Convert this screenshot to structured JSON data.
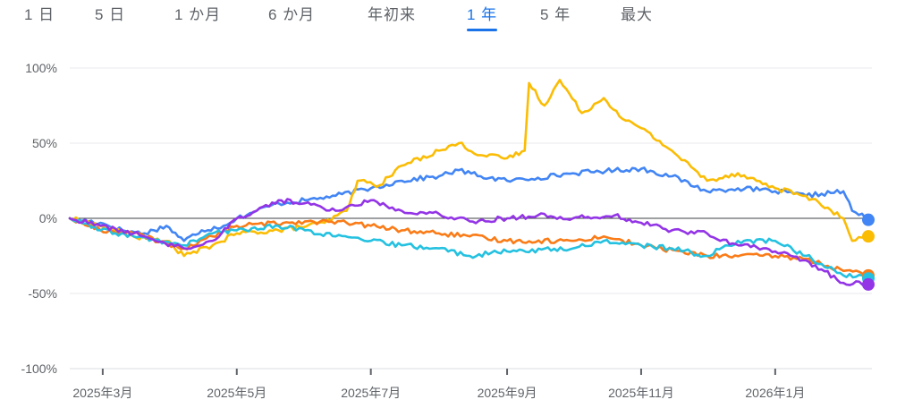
{
  "range_tabs": [
    {
      "label": "1 日",
      "active": false
    },
    {
      "label": "5 日",
      "active": false
    },
    {
      "label": "1 か月",
      "active": false
    },
    {
      "label": "6 か月",
      "active": false
    },
    {
      "label": "年初来",
      "active": false
    },
    {
      "label": "1 年",
      "active": true
    },
    {
      "label": "5 年",
      "active": false
    },
    {
      "label": "最大",
      "active": false
    }
  ],
  "chart_data": {
    "type": "line",
    "x_range": [
      "2025-02-14",
      "2026-02-14"
    ],
    "ylim": [
      -100,
      100
    ],
    "y_ticks": [
      {
        "value": 100,
        "label": "100%"
      },
      {
        "value": 50,
        "label": "50%"
      },
      {
        "value": 0,
        "label": "0%"
      },
      {
        "value": -50,
        "label": "-50%"
      },
      {
        "value": -100,
        "label": "-100%"
      }
    ],
    "x_ticks": [
      {
        "date": "2025-03-01",
        "label": "2025年3月"
      },
      {
        "date": "2025-05-01",
        "label": "2025年5月"
      },
      {
        "date": "2025-07-01",
        "label": "2025年7月"
      },
      {
        "date": "2025-09-01",
        "label": "2025年9月"
      },
      {
        "date": "2025-11-01",
        "label": "2025年11月"
      },
      {
        "date": "2026-01-01",
        "label": "2026年1月"
      }
    ],
    "grid": "horizontal",
    "baseline": 0,
    "series": [
      {
        "color": "#4285f4",
        "points": [
          [
            "2025-02-14",
            0
          ],
          [
            "2025-02-28",
            -3
          ],
          [
            "2025-03-10",
            -8
          ],
          [
            "2025-03-20",
            -10
          ],
          [
            "2025-03-30",
            -5
          ],
          [
            "2025-04-07",
            -15
          ],
          [
            "2025-04-15",
            -8
          ],
          [
            "2025-04-25",
            -5
          ],
          [
            "2025-05-01",
            0
          ],
          [
            "2025-05-10",
            5
          ],
          [
            "2025-05-20",
            10
          ],
          [
            "2025-06-01",
            12
          ],
          [
            "2025-06-15",
            15
          ],
          [
            "2025-07-01",
            20
          ],
          [
            "2025-07-15",
            25
          ],
          [
            "2025-08-01",
            28
          ],
          [
            "2025-08-10",
            32
          ],
          [
            "2025-08-20",
            28
          ],
          [
            "2025-09-01",
            25
          ],
          [
            "2025-09-15",
            27
          ],
          [
            "2025-10-01",
            30
          ],
          [
            "2025-10-20",
            32
          ],
          [
            "2025-11-01",
            33
          ],
          [
            "2025-11-15",
            28
          ],
          [
            "2025-12-01",
            18
          ],
          [
            "2025-12-15",
            20
          ],
          [
            "2026-01-01",
            18
          ],
          [
            "2026-01-15",
            15
          ],
          [
            "2026-02-01",
            18
          ],
          [
            "2026-02-05",
            5
          ],
          [
            "2026-02-14",
            -1
          ]
        ]
      },
      {
        "color": "#fbbc04",
        "points": [
          [
            "2025-02-14",
            0
          ],
          [
            "2025-02-28",
            -5
          ],
          [
            "2025-03-15",
            -12
          ],
          [
            "2025-03-30",
            -15
          ],
          [
            "2025-04-07",
            -25
          ],
          [
            "2025-04-20",
            -18
          ],
          [
            "2025-05-01",
            -10
          ],
          [
            "2025-05-20",
            -8
          ],
          [
            "2025-06-10",
            -3
          ],
          [
            "2025-06-20",
            5
          ],
          [
            "2025-06-25",
            25
          ],
          [
            "2025-07-05",
            22
          ],
          [
            "2025-07-15",
            35
          ],
          [
            "2025-08-01",
            45
          ],
          [
            "2025-08-10",
            50
          ],
          [
            "2025-08-20",
            42
          ],
          [
            "2025-09-01",
            40
          ],
          [
            "2025-09-09",
            45
          ],
          [
            "2025-09-11",
            90
          ],
          [
            "2025-09-18",
            75
          ],
          [
            "2025-09-25",
            92
          ],
          [
            "2025-10-05",
            70
          ],
          [
            "2025-10-15",
            80
          ],
          [
            "2025-10-25",
            65
          ],
          [
            "2025-11-01",
            60
          ],
          [
            "2025-11-15",
            45
          ],
          [
            "2025-12-01",
            25
          ],
          [
            "2025-12-15",
            30
          ],
          [
            "2026-01-01",
            20
          ],
          [
            "2026-01-15",
            15
          ],
          [
            "2026-02-01",
            0
          ],
          [
            "2026-02-05",
            -15
          ],
          [
            "2026-02-14",
            -12
          ]
        ]
      },
      {
        "color": "#fa7b17",
        "points": [
          [
            "2025-02-14",
            0
          ],
          [
            "2025-02-28",
            -8
          ],
          [
            "2025-03-15",
            -10
          ],
          [
            "2025-04-07",
            -20
          ],
          [
            "2025-04-20",
            -12
          ],
          [
            "2025-05-01",
            -5
          ],
          [
            "2025-06-01",
            -2
          ],
          [
            "2025-06-20",
            -3
          ],
          [
            "2025-07-01",
            -5
          ],
          [
            "2025-07-15",
            -8
          ],
          [
            "2025-08-01",
            -10
          ],
          [
            "2025-08-15",
            -12
          ],
          [
            "2025-09-01",
            -15
          ],
          [
            "2025-10-01",
            -15
          ],
          [
            "2025-10-15",
            -12
          ],
          [
            "2025-11-01",
            -18
          ],
          [
            "2025-12-01",
            -25
          ],
          [
            "2026-01-01",
            -25
          ],
          [
            "2026-01-15",
            -27
          ],
          [
            "2026-02-01",
            -35
          ],
          [
            "2026-02-14",
            -38
          ]
        ]
      },
      {
        "color": "#24c1e0",
        "points": [
          [
            "2025-02-14",
            0
          ],
          [
            "2025-02-28",
            -8
          ],
          [
            "2025-03-15",
            -12
          ],
          [
            "2025-04-07",
            -18
          ],
          [
            "2025-04-20",
            -10
          ],
          [
            "2025-05-01",
            -8
          ],
          [
            "2025-05-20",
            -5
          ],
          [
            "2025-06-01",
            -8
          ],
          [
            "2025-06-15",
            -12
          ],
          [
            "2025-07-01",
            -15
          ],
          [
            "2025-07-15",
            -18
          ],
          [
            "2025-08-01",
            -20
          ],
          [
            "2025-08-15",
            -25
          ],
          [
            "2025-09-01",
            -22
          ],
          [
            "2025-10-01",
            -20
          ],
          [
            "2025-10-15",
            -15
          ],
          [
            "2025-11-01",
            -18
          ],
          [
            "2025-11-15",
            -20
          ],
          [
            "2025-12-01",
            -25
          ],
          [
            "2025-12-15",
            -15
          ],
          [
            "2026-01-01",
            -15
          ],
          [
            "2026-01-15",
            -25
          ],
          [
            "2026-02-01",
            -38
          ],
          [
            "2026-02-14",
            -40
          ]
        ]
      },
      {
        "color": "#9334e6",
        "points": [
          [
            "2025-02-14",
            0
          ],
          [
            "2025-02-28",
            -5
          ],
          [
            "2025-03-15",
            -10
          ],
          [
            "2025-04-07",
            -20
          ],
          [
            "2025-04-20",
            -15
          ],
          [
            "2025-05-01",
            0
          ],
          [
            "2025-05-10",
            5
          ],
          [
            "2025-05-20",
            12
          ],
          [
            "2025-06-01",
            10
          ],
          [
            "2025-06-15",
            5
          ],
          [
            "2025-07-01",
            12
          ],
          [
            "2025-07-15",
            5
          ],
          [
            "2025-08-01",
            3
          ],
          [
            "2025-08-15",
            -2
          ],
          [
            "2025-09-01",
            0
          ],
          [
            "2025-09-15",
            2
          ],
          [
            "2025-10-01",
            0
          ],
          [
            "2025-10-20",
            2
          ],
          [
            "2025-11-01",
            -3
          ],
          [
            "2025-11-15",
            -8
          ],
          [
            "2025-12-01",
            -10
          ],
          [
            "2025-12-07",
            -15
          ],
          [
            "2026-01-01",
            -22
          ],
          [
            "2026-01-15",
            -28
          ],
          [
            "2026-02-01",
            -43
          ],
          [
            "2026-02-14",
            -44
          ]
        ]
      }
    ]
  }
}
